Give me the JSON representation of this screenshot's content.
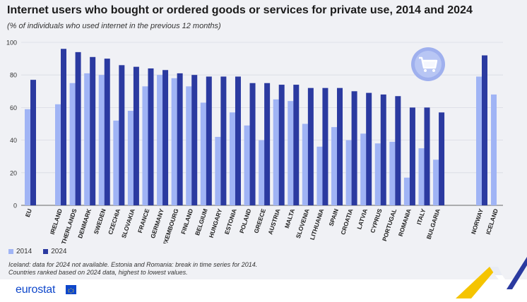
{
  "header": {
    "title": "Internet users who bought or ordered goods or services for private use, 2014 and 2024",
    "subtitle": "(% of individuals who used internet in the previous 12 months)"
  },
  "legend": {
    "items": [
      {
        "label": "2014",
        "color": "#a0b4f5"
      },
      {
        "label": "2024",
        "color": "#2b3aa0"
      }
    ]
  },
  "notes": {
    "line1": "Iceland: data for 2024 not available. Estonia and Romania: break in time series for 2014.",
    "line2": "Countries ranked based on 2024 data, highest to lowest values."
  },
  "footer": {
    "brand": "eurostat",
    "flag_icon": "eu-flag-icon"
  },
  "decor": {
    "badge_icon": "shopping-cart-icon",
    "corner_icon": "eurostat-corner-ribbon-icon"
  },
  "colors": {
    "series_2014": "#a0b4f5",
    "series_2024": "#2b3aa0",
    "background": "#f0f1f5",
    "brand_blue": "#0e47cb"
  },
  "chart_data": {
    "type": "bar",
    "title": "Internet users who bought or ordered goods or services for private use, 2014 and 2024",
    "subtitle": "(% of individuals who used internet in the previous 12 months)",
    "xlabel": "",
    "ylabel": "",
    "ylim": [
      0,
      100
    ],
    "yticks": [
      0,
      20,
      40,
      60,
      80,
      100
    ],
    "grid": true,
    "legend_position": "bottom-left",
    "categories": [
      "EU",
      "IRELAND",
      "NETHERLANDS",
      "DENMARK",
      "SWEDEN",
      "CZECHIA",
      "SLOVAKIA",
      "FRANCE",
      "GERMANY",
      "LUXEMBOURG",
      "FINLAND",
      "BELGIUM",
      "HUNGARY",
      "ESTONIA",
      "POLAND",
      "GREECE",
      "AUSTRIA",
      "MALTA",
      "SLOVENIA",
      "LITHUANIA",
      "SPAIN",
      "CROATIA",
      "LATVIA",
      "CYPRUS",
      "PORTUGAL",
      "ROMANIA",
      "ITALY",
      "BULGARIA",
      "NORWAY",
      "ICELAND"
    ],
    "series": [
      {
        "name": "2014",
        "values": [
          59,
          62,
          75,
          81,
          80,
          52,
          58,
          73,
          80,
          78,
          73,
          63,
          42,
          57,
          49,
          40,
          65,
          64,
          50,
          36,
          48,
          40,
          44,
          38,
          39,
          17,
          35,
          28,
          79,
          68
        ]
      },
      {
        "name": "2024",
        "values": [
          77,
          96,
          94,
          91,
          90,
          86,
          85,
          84,
          83,
          81,
          80,
          79,
          79,
          79,
          75,
          75,
          74,
          74,
          72,
          72,
          72,
          70,
          69,
          68,
          67,
          60,
          60,
          57,
          92,
          null
        ]
      }
    ]
  }
}
